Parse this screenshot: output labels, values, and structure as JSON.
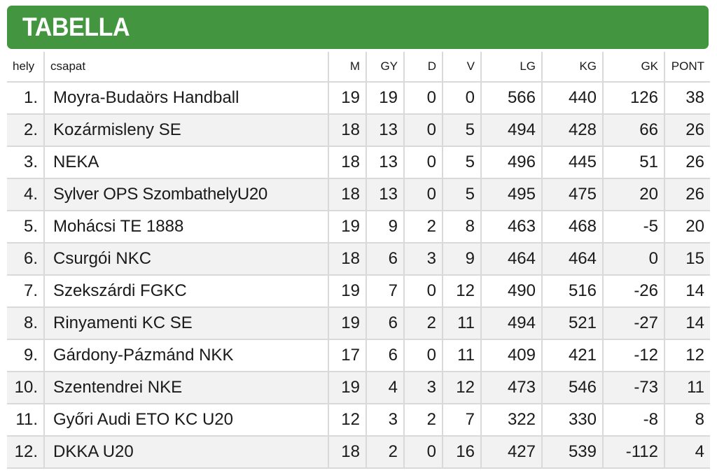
{
  "title": "TABELLA",
  "columns": [
    "hely",
    "csapat",
    "M",
    "GY",
    "D",
    "V",
    "LG",
    "KG",
    "GK",
    "PONT"
  ],
  "rows": [
    {
      "pos": "1.",
      "team": "Moyra-Budaörs Handball",
      "M": "19",
      "GY": "19",
      "D": "0",
      "V": "0",
      "LG": "566",
      "KG": "440",
      "GK": "126",
      "PONT": "38"
    },
    {
      "pos": "2.",
      "team": "Kozármisleny SE",
      "M": "18",
      "GY": "13",
      "D": "0",
      "V": "5",
      "LG": "494",
      "KG": "428",
      "GK": "66",
      "PONT": "26"
    },
    {
      "pos": "3.",
      "team": "NEKA",
      "M": "18",
      "GY": "13",
      "D": "0",
      "V": "5",
      "LG": "496",
      "KG": "445",
      "GK": "51",
      "PONT": "26"
    },
    {
      "pos": "4.",
      "team": "Sylver OPS SzombathelyU20",
      "M": "18",
      "GY": "13",
      "D": "0",
      "V": "5",
      "LG": "495",
      "KG": "475",
      "GK": "20",
      "PONT": "26"
    },
    {
      "pos": "5.",
      "team": "Mohácsi TE 1888",
      "M": "19",
      "GY": "9",
      "D": "2",
      "V": "8",
      "LG": "463",
      "KG": "468",
      "GK": "-5",
      "PONT": "20"
    },
    {
      "pos": "6.",
      "team": "Csurgói NKC",
      "M": "18",
      "GY": "6",
      "D": "3",
      "V": "9",
      "LG": "464",
      "KG": "464",
      "GK": "0",
      "PONT": "15"
    },
    {
      "pos": "7.",
      "team": "Szekszárdi FGKC",
      "M": "19",
      "GY": "7",
      "D": "0",
      "V": "12",
      "LG": "490",
      "KG": "516",
      "GK": "-26",
      "PONT": "14"
    },
    {
      "pos": "8.",
      "team": "Rinyamenti KC SE",
      "M": "19",
      "GY": "6",
      "D": "2",
      "V": "11",
      "LG": "494",
      "KG": "521",
      "GK": "-27",
      "PONT": "14"
    },
    {
      "pos": "9.",
      "team": "Gárdony-Pázmánd NKK",
      "M": "17",
      "GY": "6",
      "D": "0",
      "V": "11",
      "LG": "409",
      "KG": "421",
      "GK": "-12",
      "PONT": "12"
    },
    {
      "pos": "10.",
      "team": "Szentendrei NKE",
      "M": "19",
      "GY": "4",
      "D": "3",
      "V": "12",
      "LG": "473",
      "KG": "546",
      "GK": "-73",
      "PONT": "11"
    },
    {
      "pos": "11.",
      "team": "Győri Audi ETO KC U20",
      "M": "12",
      "GY": "3",
      "D": "2",
      "V": "7",
      "LG": "322",
      "KG": "330",
      "GK": "-8",
      "PONT": "8"
    },
    {
      "pos": "12.",
      "team": "DKKA U20",
      "M": "18",
      "GY": "2",
      "D": "0",
      "V": "16",
      "LG": "427",
      "KG": "539",
      "GK": "-112",
      "PONT": "4"
    }
  ],
  "colors": {
    "banner": "#43963f",
    "banner_text": "#ffffff",
    "stripe": "#f2f2f2",
    "grid": "#d9d9d9"
  }
}
